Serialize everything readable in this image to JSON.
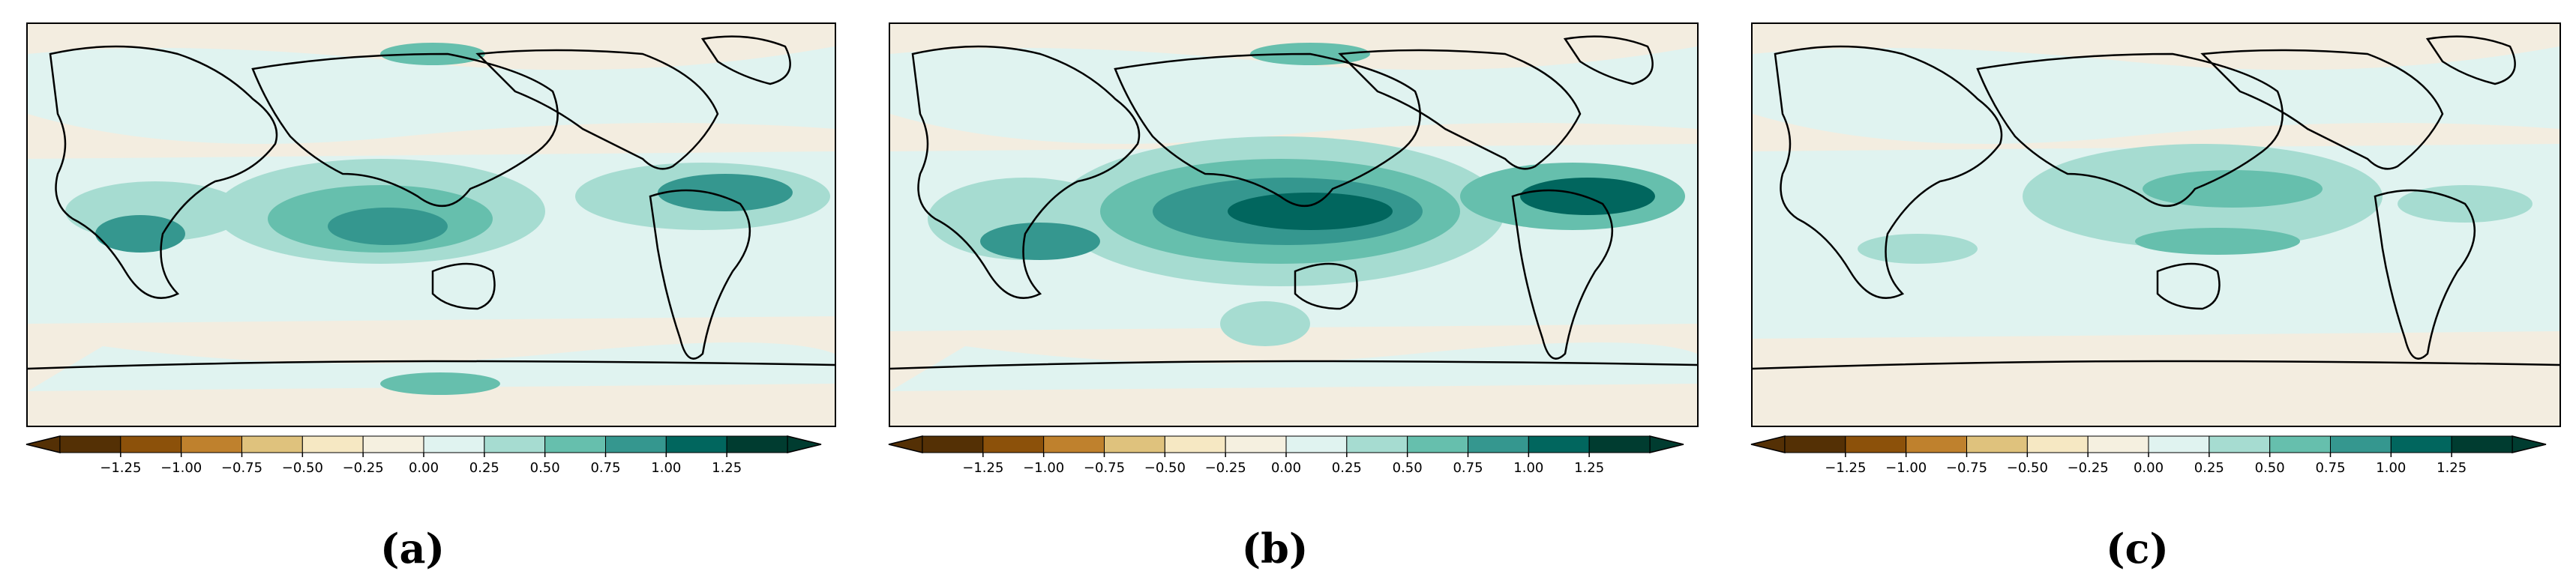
{
  "colorbar": {
    "colors": [
      "#543005",
      "#8c510a",
      "#bf812d",
      "#dfc27d",
      "#f6e8c3",
      "#f5f0e0",
      "#e0f3f0",
      "#a6dcd1",
      "#66bfad",
      "#35978f",
      "#01665e",
      "#003c30"
    ],
    "ticks": [
      "−1.25",
      "−1.00",
      "−0.75",
      "−0.50",
      "−0.25",
      "0.00",
      "0.25",
      "0.50",
      "0.75",
      "1.00",
      "1.25"
    ]
  },
  "panels": [
    {
      "label": "(a)",
      "map_description_icon": "world-map-anomaly"
    },
    {
      "label": "(b)",
      "map_description_icon": "world-map-anomaly"
    },
    {
      "label": "(c)",
      "map_description_icon": "world-map-anomaly"
    }
  ]
}
